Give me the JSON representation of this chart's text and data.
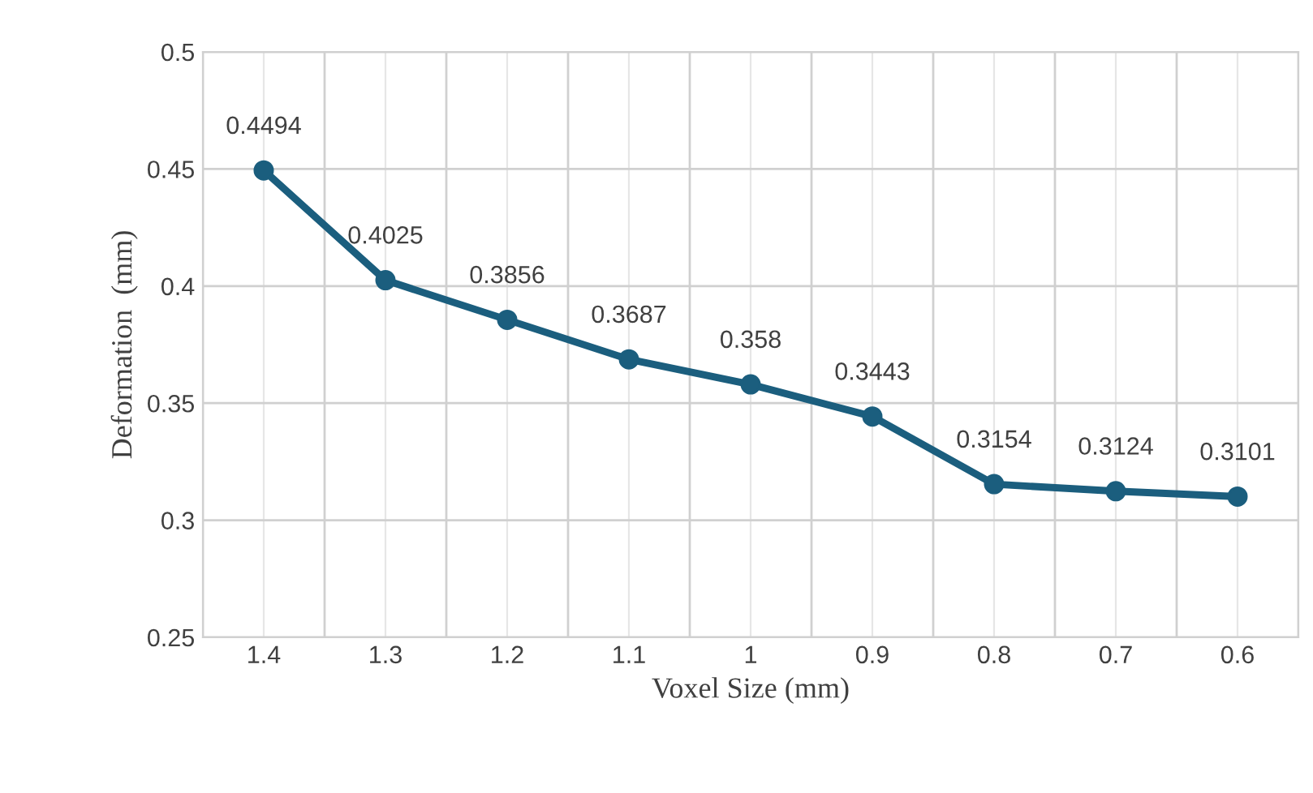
{
  "chart_data": {
    "type": "line",
    "xlabel": "Voxel Size (mm)",
    "ylabel": "Deformation  (mm)",
    "categories": [
      "1.4",
      "1.3",
      "1.2",
      "1.1",
      "1",
      "0.9",
      "0.8",
      "0.7",
      "0.6"
    ],
    "series": [
      {
        "color": "#1b5e7e",
        "values": [
          0.4494,
          0.4025,
          0.3856,
          0.3687,
          0.358,
          0.3443,
          0.3154,
          0.3124,
          0.3101
        ]
      }
    ],
    "ylim": [
      0.25,
      0.5
    ],
    "yticks": [
      0.25,
      0.3,
      0.35,
      0.4,
      0.45,
      0.5
    ],
    "grid": true,
    "marker": "circle",
    "line_style": "solid",
    "data_labels": true,
    "legend": false
  }
}
